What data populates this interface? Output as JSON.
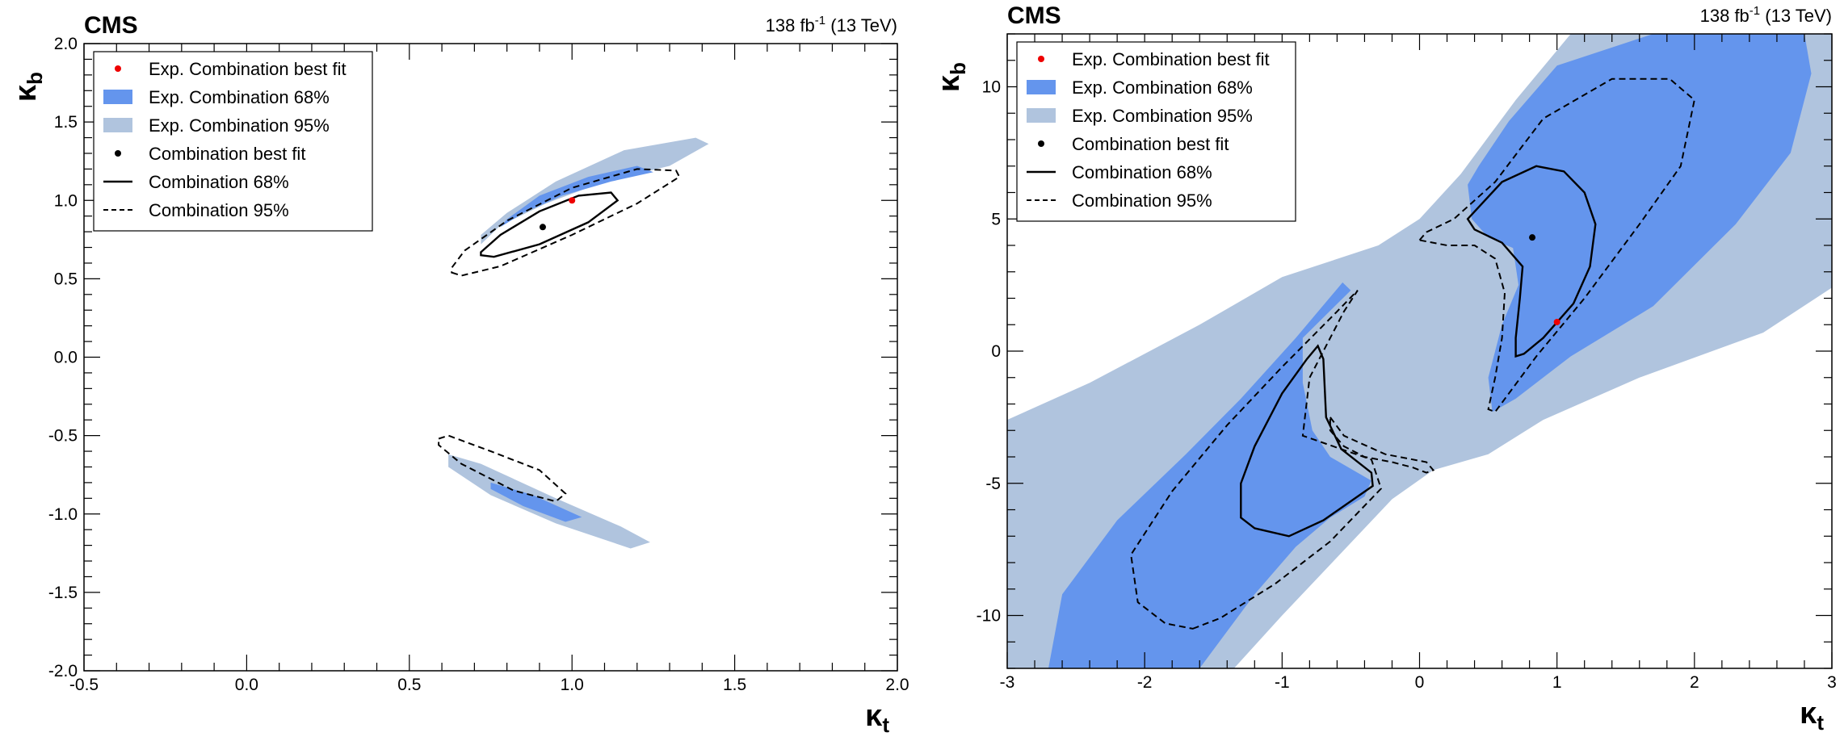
{
  "colors": {
    "exp68": "#6495ed",
    "exp95": "#b0c4de",
    "best_fit_exp": "#ee0000",
    "best_fit_obs": "#000000",
    "contour": "#000000"
  },
  "chart_data": [
    {
      "type": "contour",
      "header": {
        "experiment": "CMS",
        "luminosity": "138 fb",
        "lumi_exponent": "-1",
        "energy": "(13 TeV)"
      },
      "xlabel": "κ",
      "xlabel_sub": "t",
      "ylabel": "κ",
      "ylabel_sub": "b",
      "xlim": [
        -0.5,
        2.0
      ],
      "ylim": [
        -2.0,
        2.0
      ],
      "xticks": [
        -0.5,
        0.0,
        0.5,
        1.0,
        1.5,
        2.0
      ],
      "xtick_labels": [
        "-0.5",
        "0.0",
        "0.5",
        "1.0",
        "1.5",
        "2.0"
      ],
      "yticks": [
        -2.0,
        -1.5,
        -1.0,
        -0.5,
        0.0,
        0.5,
        1.0,
        1.5,
        2.0
      ],
      "ytick_labels": [
        "-2.0",
        "-1.5",
        "-1.0",
        "-0.5",
        "0.0",
        "0.5",
        "1.0",
        "1.5",
        "2.0"
      ],
      "legend": {
        "position": "top-left",
        "entries": [
          {
            "label": "Exp. Combination best fit",
            "kind": "marker-red"
          },
          {
            "label": "Exp. Combination 68%",
            "kind": "fill-68"
          },
          {
            "label": "Exp. Combination 95%",
            "kind": "fill-95"
          },
          {
            "label": "Combination best fit",
            "kind": "marker-black"
          },
          {
            "label": "Combination 68%",
            "kind": "line-solid"
          },
          {
            "label": "Combination 95%",
            "kind": "line-dashed"
          }
        ]
      },
      "best_fit_expected": [
        1.0,
        1.0
      ],
      "best_fit_observed": [
        0.91,
        0.83
      ],
      "exp95": [
        [
          [
            0.72,
            0.72
          ],
          [
            0.78,
            0.84
          ],
          [
            0.92,
            0.98
          ],
          [
            1.1,
            1.12
          ],
          [
            1.3,
            1.22
          ],
          [
            1.42,
            1.36
          ],
          [
            1.38,
            1.4
          ],
          [
            1.16,
            1.32
          ],
          [
            0.95,
            1.12
          ],
          [
            0.8,
            0.92
          ],
          [
            0.72,
            0.78
          ]
        ],
        [
          [
            0.62,
            -0.62
          ],
          [
            0.72,
            -0.68
          ],
          [
            0.95,
            -0.9
          ],
          [
            1.15,
            -1.08
          ],
          [
            1.24,
            -1.18
          ],
          [
            1.18,
            -1.22
          ],
          [
            0.95,
            -1.06
          ],
          [
            0.75,
            -0.88
          ],
          [
            0.62,
            -0.7
          ]
        ]
      ],
      "exp68": [
        [
          [
            0.78,
            0.83
          ],
          [
            0.85,
            0.92
          ],
          [
            0.97,
            1.03
          ],
          [
            1.12,
            1.12
          ],
          [
            1.25,
            1.18
          ],
          [
            1.2,
            1.22
          ],
          [
            1.05,
            1.15
          ],
          [
            0.9,
            1.03
          ],
          [
            0.8,
            0.88
          ]
        ],
        [
          [
            0.75,
            -0.8
          ],
          [
            0.88,
            -0.88
          ],
          [
            1.03,
            -1.02
          ],
          [
            0.98,
            -1.05
          ],
          [
            0.85,
            -0.95
          ],
          [
            0.75,
            -0.84
          ]
        ]
      ],
      "obs68": [
        [
          [
            0.72,
            0.65
          ],
          [
            0.76,
            0.64
          ],
          [
            0.9,
            0.72
          ],
          [
            1.05,
            0.86
          ],
          [
            1.14,
            1.0
          ],
          [
            1.12,
            1.05
          ],
          [
            1.02,
            1.03
          ],
          [
            0.9,
            0.93
          ],
          [
            0.78,
            0.78
          ],
          [
            0.72,
            0.67
          ]
        ]
      ],
      "obs95": [
        [
          [
            0.63,
            0.54
          ],
          [
            0.66,
            0.52
          ],
          [
            0.78,
            0.58
          ],
          [
            1.0,
            0.78
          ],
          [
            1.2,
            0.98
          ],
          [
            1.33,
            1.15
          ],
          [
            1.32,
            1.19
          ],
          [
            1.2,
            1.2
          ],
          [
            1.0,
            1.08
          ],
          [
            0.8,
            0.87
          ],
          [
            0.67,
            0.68
          ],
          [
            0.63,
            0.57
          ]
        ],
        [
          [
            0.59,
            -0.52
          ],
          [
            0.62,
            -0.5
          ],
          [
            0.75,
            -0.6
          ],
          [
            0.9,
            -0.72
          ],
          [
            0.98,
            -0.87
          ],
          [
            0.95,
            -0.92
          ],
          [
            0.82,
            -0.85
          ],
          [
            0.66,
            -0.68
          ],
          [
            0.59,
            -0.56
          ]
        ]
      ]
    },
    {
      "type": "contour",
      "header": {
        "experiment": "CMS",
        "luminosity": "138 fb",
        "lumi_exponent": "-1",
        "energy": "(13 TeV)"
      },
      "xlabel": "κ",
      "xlabel_sub": "t",
      "ylabel": "κ",
      "ylabel_sub": "b",
      "xlim": [
        -3,
        3
      ],
      "ylim": [
        -12,
        12
      ],
      "xticks": [
        -3,
        -2,
        -1,
        0,
        1,
        2,
        3
      ],
      "xtick_labels": [
        "-3",
        "-2",
        "-1",
        "0",
        "1",
        "2",
        "3"
      ],
      "yticks": [
        -10,
        -5,
        0,
        5,
        10
      ],
      "ytick_labels": [
        "-10",
        "-5",
        "0",
        "5",
        "10"
      ],
      "legend": {
        "position": "top-left",
        "entries": [
          {
            "label": "Exp. Combination best fit",
            "kind": "marker-red"
          },
          {
            "label": "Exp. Combination 68%",
            "kind": "fill-68"
          },
          {
            "label": "Exp. Combination 95%",
            "kind": "fill-95"
          },
          {
            "label": "Combination best fit",
            "kind": "marker-black"
          },
          {
            "label": "Combination 68%",
            "kind": "line-solid"
          },
          {
            "label": "Combination 95%",
            "kind": "line-dashed"
          }
        ]
      },
      "best_fit_expected": [
        1.0,
        1.1
      ],
      "best_fit_observed": [
        0.82,
        4.3
      ],
      "exp95": [
        [
          [
            -3,
            -2.6
          ],
          [
            -2.4,
            -1.2
          ],
          [
            -1.6,
            1.0
          ],
          [
            -1.0,
            2.8
          ],
          [
            -0.3,
            4.0
          ],
          [
            0.0,
            5.0
          ],
          [
            0.3,
            6.7
          ],
          [
            0.7,
            9.5
          ],
          [
            1.1,
            12
          ],
          [
            3,
            12
          ],
          [
            3,
            2.4
          ],
          [
            2.5,
            0.7
          ],
          [
            1.6,
            -1.0
          ],
          [
            0.9,
            -2.6
          ],
          [
            0.5,
            -3.9
          ],
          [
            0.1,
            -4.5
          ],
          [
            -0.2,
            -5.6
          ],
          [
            -0.6,
            -7.8
          ],
          [
            -1.0,
            -10.0
          ],
          [
            -1.35,
            -12
          ],
          [
            -3,
            -12
          ]
        ],
        [
          [
            -0.1,
            -4.0
          ],
          [
            0.0,
            -3.5
          ],
          [
            0.3,
            -0.5
          ],
          [
            0.25,
            0.3
          ],
          [
            0.12,
            1.0
          ],
          [
            -0.05,
            3.0
          ],
          [
            -0.08,
            3.6
          ],
          [
            -0.2,
            3.7
          ],
          [
            -0.35,
            3.0
          ],
          [
            -0.5,
            1.5
          ],
          [
            -0.58,
            0.5
          ],
          [
            -0.55,
            -1.0
          ],
          [
            -0.35,
            -3.0
          ],
          [
            -0.2,
            -3.8
          ]
        ]
      ],
      "exp68": [
        [
          [
            -2.7,
            -12
          ],
          [
            -2.6,
            -9.2
          ],
          [
            -2.2,
            -6.4
          ],
          [
            -1.7,
            -3.9
          ],
          [
            -1.3,
            -1.8
          ],
          [
            -0.9,
            0.5
          ],
          [
            -0.56,
            2.6
          ],
          [
            -0.5,
            2.3
          ],
          [
            -0.85,
            0.5
          ],
          [
            -0.85,
            -1.2
          ],
          [
            -0.78,
            -3.0
          ],
          [
            -0.65,
            -4.0
          ],
          [
            -0.35,
            -4.9
          ],
          [
            -0.4,
            -5.5
          ],
          [
            -0.65,
            -6.3
          ],
          [
            -0.9,
            -7.4
          ],
          [
            -1.2,
            -9.2
          ],
          [
            -1.6,
            -12
          ]
        ],
        [
          [
            0.53,
            -2.3
          ],
          [
            0.7,
            -1.8
          ],
          [
            1.1,
            -0.2
          ],
          [
            1.7,
            1.7
          ],
          [
            2.3,
            4.8
          ],
          [
            2.7,
            7.5
          ],
          [
            2.85,
            10.5
          ],
          [
            2.8,
            12
          ],
          [
            1.7,
            12
          ],
          [
            1.0,
            10.8
          ],
          [
            0.65,
            8.7
          ],
          [
            0.43,
            7.0
          ],
          [
            0.35,
            6.3
          ],
          [
            0.38,
            5.0
          ],
          [
            0.5,
            4.3
          ],
          [
            0.68,
            3.9
          ],
          [
            0.72,
            2.5
          ],
          [
            0.6,
            1.0
          ],
          [
            0.5,
            -1.0
          ]
        ]
      ],
      "obs68": [
        [
          [
            -1.2,
            -6.7
          ],
          [
            -0.95,
            -7.0
          ],
          [
            -0.7,
            -6.4
          ],
          [
            -0.34,
            -5.1
          ],
          [
            -0.35,
            -4.6
          ],
          [
            -0.57,
            -3.7
          ],
          [
            -0.68,
            -2.5
          ],
          [
            -0.7,
            -0.3
          ],
          [
            -0.74,
            0.2
          ],
          [
            -0.82,
            -0.3
          ],
          [
            -1.0,
            -1.6
          ],
          [
            -1.2,
            -3.6
          ],
          [
            -1.3,
            -5.0
          ],
          [
            -1.3,
            -6.3
          ]
        ],
        [
          [
            0.7,
            -0.2
          ],
          [
            0.76,
            -0.1
          ],
          [
            0.9,
            0.5
          ],
          [
            1.12,
            1.8
          ],
          [
            1.24,
            3.2
          ],
          [
            1.28,
            4.8
          ],
          [
            1.2,
            6.0
          ],
          [
            1.05,
            6.8
          ],
          [
            0.85,
            7.0
          ],
          [
            0.6,
            6.4
          ],
          [
            0.35,
            5.0
          ],
          [
            0.4,
            4.6
          ],
          [
            0.6,
            4.1
          ],
          [
            0.75,
            3.2
          ],
          [
            0.73,
            2.0
          ],
          [
            0.7,
            0.5
          ]
        ]
      ],
      "obs95": [
        [
          [
            -1.65,
            -10.5
          ],
          [
            -1.45,
            -10.1
          ],
          [
            -1.05,
            -8.8
          ],
          [
            -0.65,
            -7.2
          ],
          [
            -0.28,
            -5.2
          ],
          [
            -0.35,
            -4.1
          ],
          [
            -0.85,
            -3.2
          ],
          [
            -0.8,
            -1.0
          ],
          [
            -0.55,
            1.5
          ],
          [
            -0.45,
            2.3
          ],
          [
            -0.6,
            1.5
          ],
          [
            -1.0,
            -0.6
          ],
          [
            -1.4,
            -2.8
          ],
          [
            -1.8,
            -5.3
          ],
          [
            -2.1,
            -7.7
          ],
          [
            -2.05,
            -9.5
          ],
          [
            -1.85,
            -10.3
          ]
        ],
        [
          [
            -0.65,
            -2.5
          ],
          [
            -0.55,
            -3.2
          ],
          [
            -0.25,
            -3.9
          ],
          [
            0.05,
            -4.2
          ],
          [
            0.1,
            -4.5
          ],
          [
            0.05,
            -4.6
          ],
          [
            -0.05,
            -4.4
          ],
          [
            -0.2,
            -4.2
          ],
          [
            -0.4,
            -4.0
          ],
          [
            -0.55,
            -3.6
          ],
          [
            -0.65,
            -3.0
          ]
        ],
        [
          [
            0.0,
            4.2
          ],
          [
            0.05,
            4.5
          ],
          [
            0.25,
            5.0
          ],
          [
            0.55,
            6.4
          ],
          [
            0.9,
            8.8
          ],
          [
            1.4,
            10.3
          ],
          [
            1.82,
            10.3
          ],
          [
            2.0,
            9.5
          ],
          [
            1.9,
            7.0
          ],
          [
            1.6,
            4.8
          ],
          [
            1.2,
            2.0
          ],
          [
            0.85,
            -0.2
          ],
          [
            0.55,
            -2.3
          ],
          [
            0.5,
            -2.2
          ],
          [
            0.55,
            -1.0
          ],
          [
            0.6,
            0.5
          ],
          [
            0.62,
            2.2
          ],
          [
            0.55,
            3.5
          ],
          [
            0.4,
            4.0
          ],
          [
            0.2,
            4.0
          ]
        ]
      ]
    }
  ]
}
